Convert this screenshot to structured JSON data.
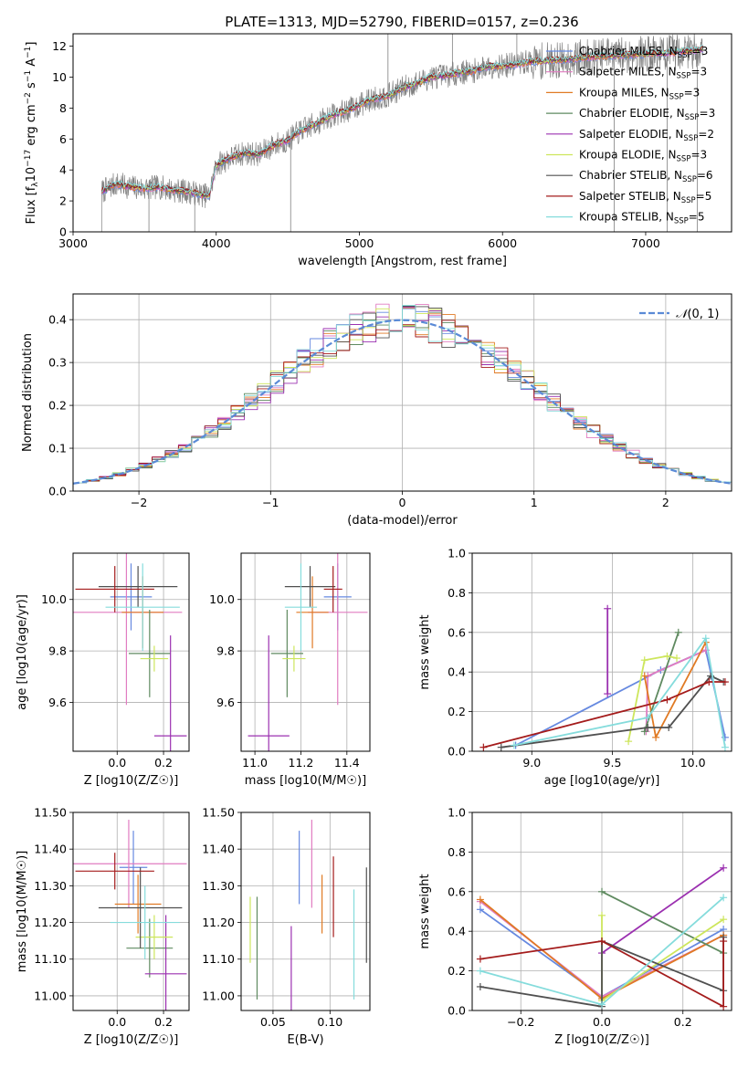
{
  "figure": {
    "title": "PLATE=1313, MJD=52790, FIBERID=0157, z=0.236"
  },
  "models": [
    {
      "name": "Chabrier MILES",
      "nssp": "3",
      "color": "#6689e0"
    },
    {
      "name": "Salpeter MILES",
      "nssp": "3",
      "color": "#e17cc1"
    },
    {
      "name": "Kroupa MILES",
      "nssp": "3",
      "color": "#e07a24"
    },
    {
      "name": "Chabrier ELODIE",
      "nssp": "3",
      "color": "#5f8a60"
    },
    {
      "name": "Salpeter ELODIE",
      "nssp": "2",
      "color": "#9b30b0"
    },
    {
      "name": "Kroupa ELODIE",
      "nssp": "3",
      "color": "#cde65c"
    },
    {
      "name": "Chabrier STELIB",
      "nssp": "6",
      "color": "#505050"
    },
    {
      "name": "Salpeter STELIB",
      "nssp": "5",
      "color": "#a41c1c"
    },
    {
      "name": "Kroupa STELIB",
      "nssp": "5",
      "color": "#85dcdc"
    }
  ],
  "chart_data": [
    {
      "id": "spectrum",
      "type": "line",
      "title": "PLATE=1313, MJD=52790, FIBERID=0157, z=0.236",
      "xlabel": "wavelength [Angstrom, rest frame]",
      "ylabel": "Flux [f_λ 10^-17 erg cm^-2 s^-1 A^-1]",
      "xlim": [
        3000,
        7600
      ],
      "ylim": [
        0,
        12.8
      ],
      "xticks": [
        3000,
        4000,
        5000,
        6000,
        7000
      ],
      "yticks": [
        0,
        2,
        4,
        6,
        8,
        10,
        12
      ],
      "legend": "right",
      "data_color": "#808080",
      "continuum": [
        [
          3200,
          2.6
        ],
        [
          3300,
          3.1
        ],
        [
          3400,
          2.9
        ],
        [
          3500,
          2.8
        ],
        [
          3600,
          2.9
        ],
        [
          3700,
          2.7
        ],
        [
          3800,
          2.6
        ],
        [
          3900,
          2.4
        ],
        [
          3950,
          2.3
        ],
        [
          4000,
          4.3
        ],
        [
          4100,
          4.8
        ],
        [
          4200,
          5.1
        ],
        [
          4300,
          5.0
        ],
        [
          4400,
          5.6
        ],
        [
          4500,
          5.9
        ],
        [
          4600,
          6.6
        ],
        [
          4700,
          7.0
        ],
        [
          4800,
          7.5
        ],
        [
          4900,
          7.8
        ],
        [
          5000,
          8.2
        ],
        [
          5100,
          8.6
        ],
        [
          5200,
          8.8
        ],
        [
          5300,
          9.3
        ],
        [
          5400,
          9.6
        ],
        [
          5500,
          10.0
        ],
        [
          5600,
          10.1
        ],
        [
          5700,
          10.3
        ],
        [
          5800,
          10.4
        ],
        [
          5900,
          10.7
        ],
        [
          6000,
          10.7
        ],
        [
          6200,
          11.0
        ],
        [
          6400,
          11.1
        ],
        [
          6600,
          11.3
        ],
        [
          6800,
          11.4
        ],
        [
          7000,
          11.5
        ],
        [
          7200,
          11.6
        ],
        [
          7400,
          11.8
        ]
      ],
      "spikes": [
        [
          4520,
          0
        ],
        [
          3530,
          0
        ],
        [
          3850,
          0
        ],
        [
          6780,
          0
        ],
        [
          7150,
          0
        ],
        [
          7360,
          0
        ],
        [
          5200,
          13
        ],
        [
          5650,
          13
        ],
        [
          6100,
          13
        ]
      ]
    },
    {
      "id": "residuals",
      "type": "histogram",
      "xlabel": "(data-model)/error",
      "ylabel": "Normed distribution",
      "xlim": [
        -2.5,
        2.5
      ],
      "ylim": [
        0,
        0.46
      ],
      "xticks": [
        -2,
        -1,
        0,
        1,
        2
      ],
      "yticks": [
        0.0,
        0.1,
        0.2,
        0.3,
        0.4
      ],
      "bin_width": 0.1,
      "reference_label": "N(0,1)",
      "reference_color": "#5a8ad6",
      "legend": "top-right"
    },
    {
      "id": "age_vs_z",
      "type": "errorbar",
      "xlabel": "Z [log10(Z/Z☉)]",
      "ylabel": "age [log10(age/yr)]",
      "xlim": [
        -0.19,
        0.31
      ],
      "ylim": [
        9.41,
        10.18
      ],
      "xticks": [
        0.0,
        0.2
      ],
      "yticks": [
        9.6,
        9.8,
        10.0
      ],
      "points": [
        {
          "model": 0,
          "x": 0.06,
          "y": 10.01,
          "xerr": 0.09,
          "yerr": 0.13
        },
        {
          "model": 1,
          "x": 0.04,
          "y": 9.95,
          "xerr": 0.24,
          "yerr": 0.36
        },
        {
          "model": 2,
          "x": 0.11,
          "y": 9.95,
          "xerr": 0.09,
          "yerr": 0.14
        },
        {
          "model": 3,
          "x": 0.14,
          "y": 9.79,
          "xerr": 0.09,
          "yerr": 0.17
        },
        {
          "model": 4,
          "x": 0.23,
          "y": 9.47,
          "xerr": 0.07,
          "yerr": 0.39
        },
        {
          "model": 5,
          "x": 0.16,
          "y": 9.77,
          "xerr": 0.06,
          "yerr": 0.05
        },
        {
          "model": 6,
          "x": 0.09,
          "y": 10.05,
          "xerr": 0.17,
          "yerr": 0.08
        },
        {
          "model": 7,
          "x": -0.01,
          "y": 10.04,
          "xerr": 0.17,
          "yerr": 0.09
        },
        {
          "model": 8,
          "x": 0.11,
          "y": 9.97,
          "xerr": 0.16,
          "yerr": 0.17
        }
      ]
    },
    {
      "id": "age_vs_mass",
      "type": "errorbar",
      "xlabel": "mass [log10(M/M☉)]",
      "ylabel": "",
      "xlim": [
        10.94,
        11.5
      ],
      "ylim": [
        9.41,
        10.18
      ],
      "xticks": [
        11.0,
        11.2,
        11.4
      ],
      "yticks": [
        9.6,
        9.8,
        10.0
      ],
      "points": [
        {
          "model": 0,
          "x": 11.36,
          "y": 10.01,
          "xerr": 0.06,
          "yerr": 0.13
        },
        {
          "model": 1,
          "x": 11.36,
          "y": 9.95,
          "xerr": 0.13,
          "yerr": 0.36
        },
        {
          "model": 2,
          "x": 11.25,
          "y": 9.95,
          "xerr": 0.07,
          "yerr": 0.14
        },
        {
          "model": 3,
          "x": 11.14,
          "y": 9.79,
          "xerr": 0.07,
          "yerr": 0.17
        },
        {
          "model": 4,
          "x": 11.06,
          "y": 9.47,
          "xerr": 0.09,
          "yerr": 0.39
        },
        {
          "model": 5,
          "x": 11.17,
          "y": 9.77,
          "xerr": 0.05,
          "yerr": 0.05
        },
        {
          "model": 6,
          "x": 11.24,
          "y": 10.05,
          "xerr": 0.11,
          "yerr": 0.08
        },
        {
          "model": 7,
          "x": 11.34,
          "y": 10.04,
          "xerr": 0.04,
          "yerr": 0.09
        },
        {
          "model": 8,
          "x": 11.2,
          "y": 9.97,
          "xerr": 0.07,
          "yerr": 0.17
        }
      ]
    },
    {
      "id": "weight_vs_age",
      "type": "line",
      "xlabel": "age [log10(age/yr)]",
      "ylabel": "mass weight",
      "xlim": [
        8.63,
        10.24
      ],
      "ylim": [
        0,
        1
      ],
      "xticks": [
        9.0,
        9.5,
        10.0
      ],
      "yticks": [
        0.0,
        0.2,
        0.4,
        0.6,
        0.8,
        1.0
      ],
      "series": [
        {
          "model": 0,
          "x": [
            8.9,
            9.8,
            10.08,
            10.2
          ],
          "y": [
            0.03,
            0.41,
            0.51,
            0.07
          ]
        },
        {
          "model": 1,
          "x": [
            9.71,
            9.72,
            10.08
          ],
          "y": [
            0.1,
            0.38,
            0.51
          ]
        },
        {
          "model": 2,
          "x": [
            9.7,
            9.77,
            10.08
          ],
          "y": [
            0.38,
            0.07,
            0.55
          ]
        },
        {
          "model": 3,
          "x": [
            9.7,
            9.91
          ],
          "y": [
            0.1,
            0.6
          ]
        },
        {
          "model": 4,
          "x": [
            9.47,
            9.47
          ],
          "y": [
            0.72,
            0.29
          ]
        },
        {
          "model": 5,
          "x": [
            9.6,
            9.7,
            9.84,
            9.9
          ],
          "y": [
            0.05,
            0.46,
            0.48,
            0.47
          ]
        },
        {
          "model": 6,
          "x": [
            8.81,
            9.72,
            9.85,
            10.11,
            10.19
          ],
          "y": [
            0.02,
            0.12,
            0.12,
            0.38,
            0.35
          ]
        },
        {
          "model": 7,
          "x": [
            8.7,
            9.84,
            10.1,
            10.2
          ],
          "y": [
            0.02,
            0.26,
            0.35,
            0.35
          ]
        },
        {
          "model": 8,
          "x": [
            8.89,
            9.72,
            10.08,
            10.2
          ],
          "y": [
            0.03,
            0.17,
            0.57,
            0.02
          ]
        }
      ]
    },
    {
      "id": "mass_vs_z",
      "type": "errorbar",
      "xlabel": "Z [log10(Z/Z☉)]",
      "ylabel": "mass [log10(M/M☉)]",
      "xlim": [
        -0.19,
        0.31
      ],
      "ylim": [
        10.96,
        11.5
      ],
      "xticks": [
        0.0,
        0.2
      ],
      "yticks": [
        11.0,
        11.1,
        11.2,
        11.3,
        11.4,
        11.5
      ],
      "points": [
        {
          "model": 0,
          "x": 0.07,
          "y": 11.35,
          "xerr": 0.06,
          "yerr": 0.1
        },
        {
          "model": 1,
          "x": 0.05,
          "y": 11.36,
          "xerr": 0.25,
          "yerr": 0.12
        },
        {
          "model": 2,
          "x": 0.09,
          "y": 11.25,
          "xerr": 0.1,
          "yerr": 0.08
        },
        {
          "model": 3,
          "x": 0.14,
          "y": 11.13,
          "xerr": 0.1,
          "yerr": 0.08
        },
        {
          "model": 4,
          "x": 0.21,
          "y": 11.06,
          "xerr": 0.09,
          "yerr": 0.16
        },
        {
          "model": 5,
          "x": 0.16,
          "y": 11.16,
          "xerr": 0.08,
          "yerr": 0.06
        },
        {
          "model": 6,
          "x": 0.1,
          "y": 11.24,
          "xerr": 0.18,
          "yerr": 0.11
        },
        {
          "model": 7,
          "x": -0.01,
          "y": 11.34,
          "xerr": 0.17,
          "yerr": 0.05
        },
        {
          "model": 8,
          "x": 0.12,
          "y": 11.2,
          "xerr": 0.15,
          "yerr": 0.1
        }
      ]
    },
    {
      "id": "mass_vs_ebv",
      "type": "errorbar",
      "xlabel": "E(B-V)",
      "ylabel": "",
      "xlim": [
        0.022,
        0.135
      ],
      "ylim": [
        10.96,
        11.5
      ],
      "xticks": [
        0.05,
        0.1
      ],
      "yticks": [
        11.0,
        11.1,
        11.2,
        11.3,
        11.4,
        11.5
      ],
      "points": [
        {
          "model": 0,
          "x": 0.073,
          "y": 11.35,
          "yerr": 0.1
        },
        {
          "model": 1,
          "x": 0.084,
          "y": 11.36,
          "yerr": 0.12
        },
        {
          "model": 2,
          "x": 0.093,
          "y": 11.25,
          "yerr": 0.08
        },
        {
          "model": 3,
          "x": 0.036,
          "y": 11.13,
          "yerr": 0.14
        },
        {
          "model": 4,
          "x": 0.066,
          "y": 11.06,
          "yerr": 0.13
        },
        {
          "model": 5,
          "x": 0.03,
          "y": 11.18,
          "yerr": 0.09
        },
        {
          "model": 6,
          "x": 0.132,
          "y": 11.22,
          "yerr": 0.13
        },
        {
          "model": 7,
          "x": 0.103,
          "y": 11.27,
          "yerr": 0.11
        },
        {
          "model": 8,
          "x": 0.121,
          "y": 11.14,
          "yerr": 0.15
        }
      ]
    },
    {
      "id": "weight_vs_z",
      "type": "line",
      "xlabel": "Z [log10(Z/Z☉)]",
      "ylabel": "mass weight",
      "xlim": [
        -0.32,
        0.32
      ],
      "ylim": [
        0,
        1
      ],
      "xticks": [
        -0.2,
        0.0,
        0.2
      ],
      "yticks": [
        0.0,
        0.2,
        0.4,
        0.6,
        0.8,
        1.0
      ],
      "series": [
        {
          "model": 0,
          "x": [
            -0.3,
            0.0,
            0.3
          ],
          "y": [
            0.51,
            0.07,
            0.41
          ]
        },
        {
          "model": 1,
          "x": [
            -0.3,
            0.0,
            0.3
          ],
          "y": [
            0.55,
            0.07,
            0.38
          ]
        },
        {
          "model": 2,
          "x": [
            -0.3,
            0.0,
            0.3
          ],
          "y": [
            0.56,
            0.06,
            0.38
          ]
        },
        {
          "model": 3,
          "x": [
            0.0,
            0.3
          ],
          "y": [
            0.6,
            0.29
          ]
        },
        {
          "model": 4,
          "x": [
            0.0,
            0.3
          ],
          "y": [
            0.29,
            0.72
          ]
        },
        {
          "model": 5,
          "x": [
            0.0,
            0.0,
            0.3
          ],
          "y": [
            0.48,
            0.05,
            0.46
          ]
        },
        {
          "model": 6,
          "x": [
            -0.3,
            0.0,
            0.0,
            0.3,
            0.3
          ],
          "y": [
            0.12,
            0.02,
            0.35,
            0.1,
            0.37
          ]
        },
        {
          "model": 7,
          "x": [
            -0.3,
            0.0,
            0.3,
            0.3
          ],
          "y": [
            0.26,
            0.35,
            0.02,
            0.35
          ]
        },
        {
          "model": 8,
          "x": [
            -0.3,
            0.0,
            0.3
          ],
          "y": [
            0.2,
            0.03,
            0.57
          ]
        }
      ]
    }
  ]
}
